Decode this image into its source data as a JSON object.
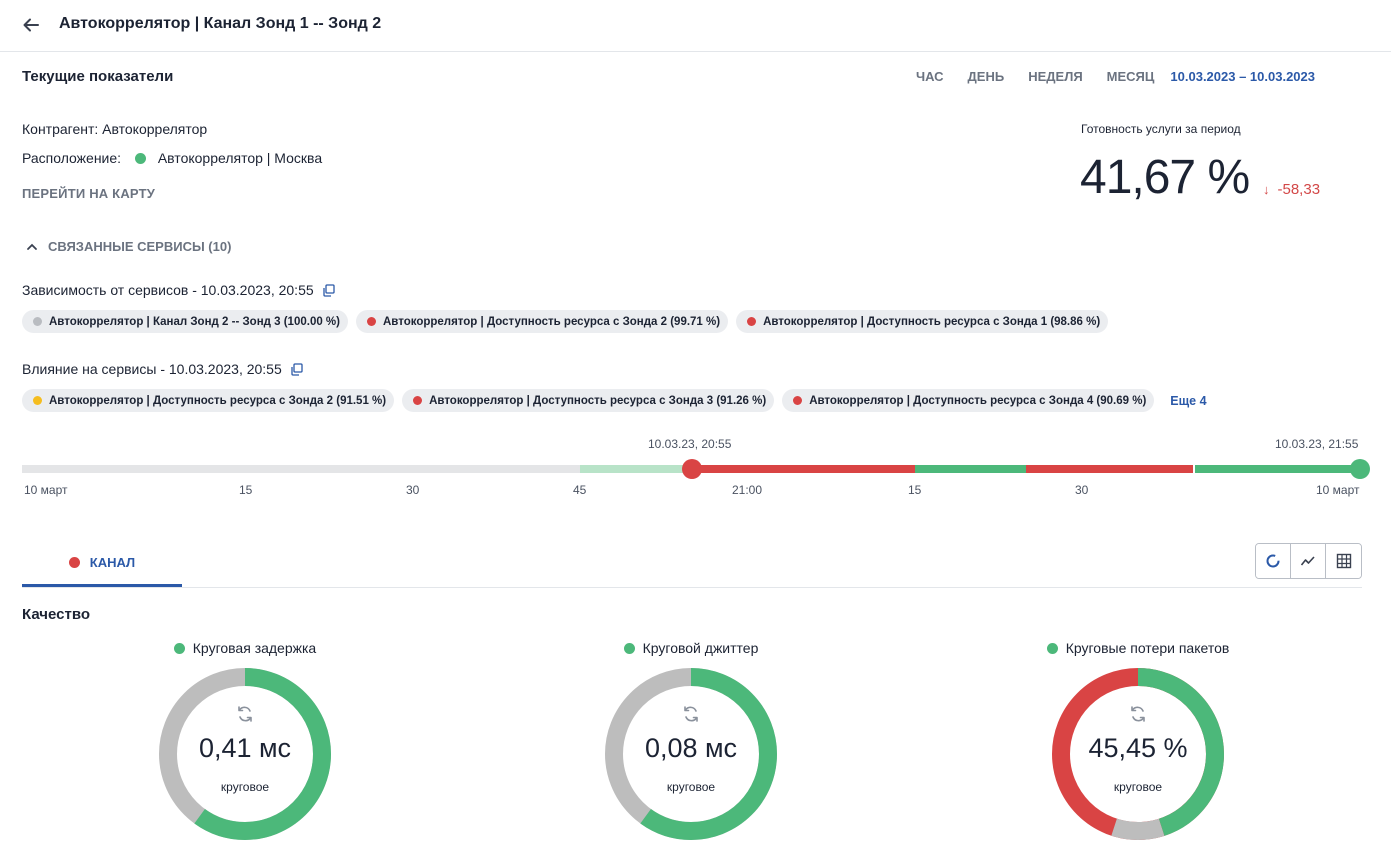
{
  "header": {
    "title": "Автокоррелятор | Канал Зонд 1 -- Зонд 2"
  },
  "current": {
    "title": "Текущие показатели",
    "periods": [
      "ЧАС",
      "ДЕНЬ",
      "НЕДЕЛЯ",
      "МЕСЯЦ"
    ],
    "date_range": "10.03.2023 – 10.03.2023",
    "contractor": "Контрагент: Автокоррелятор",
    "location_label": "Расположение:",
    "location_value": "Автокоррелятор | Москва",
    "map_link": "ПЕРЕЙТИ НА КАРТУ",
    "availability_label": "Готовность услуги за период",
    "availability_value": "41,67 %",
    "availability_delta": "-58,33"
  },
  "related": {
    "label": "СВЯЗАННЫЕ СЕРВИСЫ (10)"
  },
  "dependency": {
    "label": "Зависимость от сервисов - 10.03.2023, 20:55",
    "chips": [
      {
        "text": "Автокоррелятор | Канал Зонд 2 -- Зонд 3 (100.00 %)",
        "color": "#b9bcc1"
      },
      {
        "text": "Автокоррелятор | Доступность ресурса с Зонда 2 (99.71 %)",
        "color": "#d94444"
      },
      {
        "text": "Автокоррелятор | Доступность ресурса с Зонда 1 (98.86 %)",
        "color": "#d94444"
      }
    ]
  },
  "influence": {
    "label": "Влияние на сервисы - 10.03.2023, 20:55",
    "chips": [
      {
        "text": "Автокоррелятор | Доступность ресурса с Зонда 2 (91.51 %)",
        "color": "#f5bd1f"
      },
      {
        "text": "Автокоррелятор | Доступность ресурса с Зонда 3 (91.26 %)",
        "color": "#d94444"
      },
      {
        "text": "Автокоррелятор | Доступность ресурса с Зонда 4 (90.69 %)",
        "color": "#d94444"
      }
    ],
    "more": "Еще 4"
  },
  "timeline": {
    "cursor_time": "10.03.23, 20:55",
    "end_time": "10.03.23, 21:55",
    "ticks": [
      "10 март",
      "15",
      "30",
      "45",
      "21:00",
      "15",
      "30",
      "10 март"
    ]
  },
  "tabs": [
    {
      "label": "КАНАЛ",
      "status_color": "#d94444"
    }
  ],
  "quality": {
    "title": "Качество",
    "metrics": [
      {
        "label": "Круговая задержка",
        "value": "0,41 мс",
        "sub": "круговое",
        "status_color": "#4cb87a"
      },
      {
        "label": "Круговой джиттер",
        "value": "0,08 мс",
        "sub": "круговое",
        "status_color": "#4cb87a"
      },
      {
        "label": "Круговые потери пакетов",
        "value": "45,45 %",
        "sub": "круговое",
        "status_color": "#4cb87a"
      }
    ]
  },
  "colors": {
    "accent": "#2b59a8",
    "green": "#4cb87a",
    "red": "#d94444",
    "gray": "#bdbdbd"
  }
}
